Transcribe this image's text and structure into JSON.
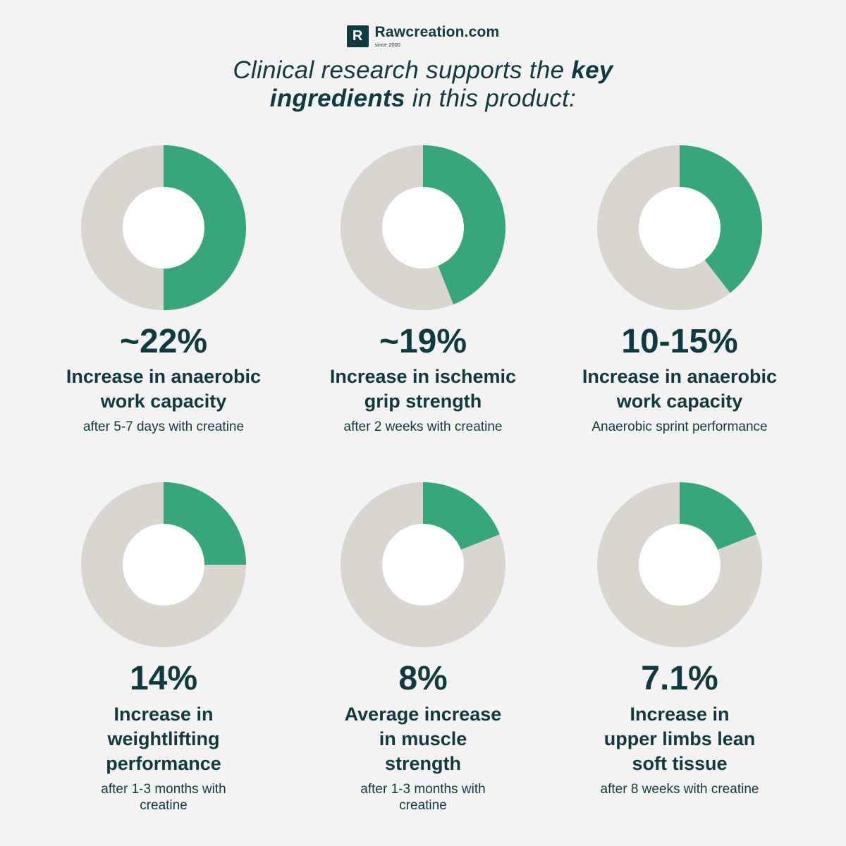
{
  "brand": {
    "logo_letter": "R",
    "name": "Rawcreation.com",
    "tagline": "since 2000"
  },
  "headline": {
    "part1": "Clinical research supports the ",
    "bold1": "key",
    "bold2": "ingredients",
    "part2": " in this product:"
  },
  "colors": {
    "filled": "#36a77a",
    "track": "#d9d5cf",
    "hole": "#ffffff",
    "text": "#0f3a3f",
    "background": "#f3f3f3"
  },
  "chart_data": [
    {
      "type": "pie",
      "value_label": "~22%",
      "fill_fraction": 0.5,
      "description_lines": [
        "Increase in anaerobic",
        "work capacity"
      ],
      "note_lines": [
        "after 5-7 days with creatine"
      ]
    },
    {
      "type": "pie",
      "value_label": "~19%",
      "fill_fraction": 0.44,
      "description_lines": [
        "Increase in ischemic",
        "grip strength"
      ],
      "note_lines": [
        "after 2 weeks with creatine"
      ]
    },
    {
      "type": "pie",
      "value_label": "10-15%",
      "fill_fraction": 0.395,
      "description_lines": [
        "Increase in anaerobic",
        "work capacity"
      ],
      "note_lines": [
        "Anaerobic sprint performance"
      ]
    },
    {
      "type": "pie",
      "value_label": "14%",
      "fill_fraction": 0.25,
      "description_lines": [
        "Increase in",
        "weightlifting",
        "performance"
      ],
      "note_lines": [
        "after 1-3 months with",
        "creatine"
      ]
    },
    {
      "type": "pie",
      "value_label": "8%",
      "fill_fraction": 0.19,
      "description_lines": [
        "Average increase",
        "in muscle",
        "strength"
      ],
      "note_lines": [
        "after 1-3 months with",
        "creatine"
      ]
    },
    {
      "type": "pie",
      "value_label": "7.1%",
      "fill_fraction": 0.19,
      "description_lines": [
        "Increase in",
        "upper limbs lean",
        "soft tissue"
      ],
      "note_lines": [
        "after 8 weeks with creatine"
      ]
    }
  ]
}
